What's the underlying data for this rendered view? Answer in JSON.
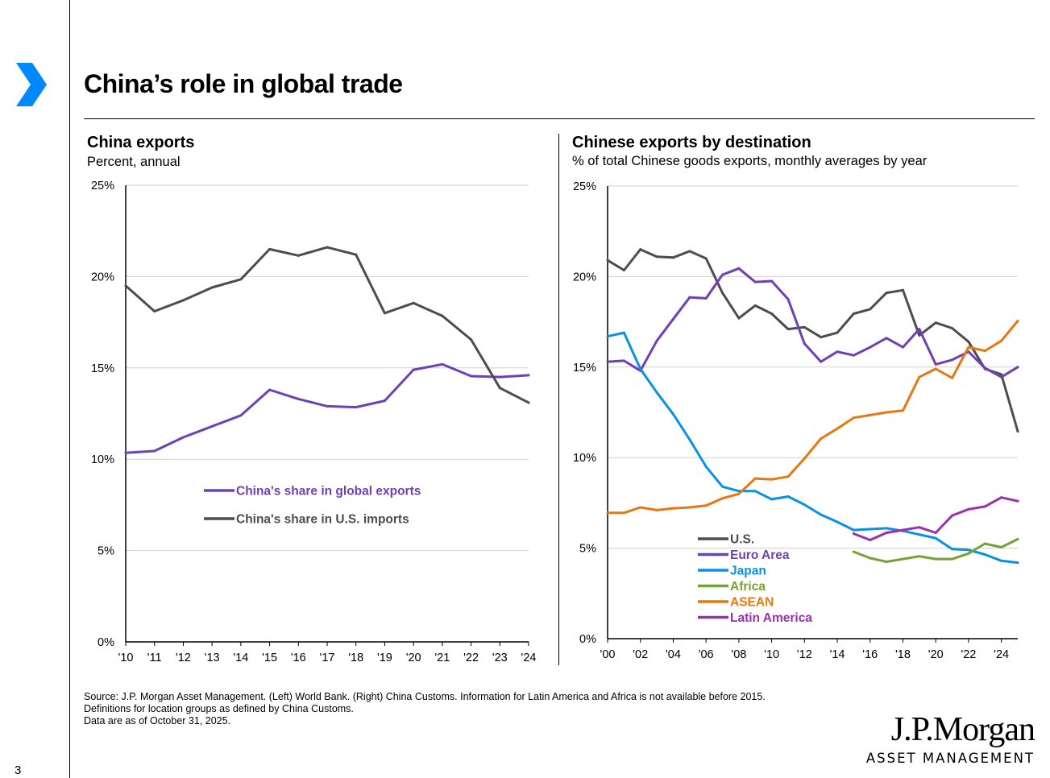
{
  "page": {
    "title": "China’s role in global trade",
    "page_number": "3",
    "source_lines": [
      "Source:  J.P. Morgan Asset Management. (Left) World Bank. (Right) China Customs. Information for Latin America and Africa is not available before 2015.",
      "Definitions for location groups as defined by China Customs.",
      "Data are as of October 31, 2025."
    ],
    "logo": {
      "main": "J.P.Morgan",
      "sub": "ASSET MANAGEMENT"
    },
    "colors": {
      "accent": "#0088ff",
      "grid": "#d0d0d0",
      "axis": "#000000"
    }
  },
  "chart_data": [
    {
      "type": "line",
      "title": "China exports",
      "subtitle": "Percent, annual",
      "xlabel": "",
      "ylabel": "",
      "categories": [
        "'10",
        "'11",
        "'12",
        "'13",
        "'14",
        "'15",
        "'16",
        "'17",
        "'18",
        "'19",
        "'20",
        "'21",
        "'22",
        "'23",
        "'24"
      ],
      "ylim": [
        0,
        25
      ],
      "yticks": [
        0,
        5,
        10,
        15,
        20,
        25
      ],
      "ytick_labels": [
        "0%",
        "5%",
        "10%",
        "15%",
        "20%",
        "25%"
      ],
      "grid": true,
      "legend_position": "center",
      "series": [
        {
          "name": "China's share in global exports",
          "color": "#6f3fb5",
          "values": [
            10.35,
            10.45,
            11.2,
            11.8,
            12.4,
            13.8,
            13.3,
            12.9,
            12.85,
            13.2,
            14.9,
            15.2,
            14.55,
            14.5,
            14.6
          ]
        },
        {
          "name": "China's share in U.S. imports",
          "color": "#4d4d4d",
          "values": [
            19.5,
            18.1,
            18.7,
            19.4,
            19.85,
            21.5,
            21.15,
            21.6,
            21.2,
            18.0,
            18.55,
            17.85,
            16.55,
            13.9,
            13.1
          ]
        }
      ]
    },
    {
      "type": "line",
      "title": "Chinese exports by destination",
      "subtitle": "% of total Chinese goods exports, monthly averages by year",
      "xlabel": "",
      "ylabel": "",
      "x": [
        2000,
        2001,
        2002,
        2003,
        2004,
        2005,
        2006,
        2007,
        2008,
        2009,
        2010,
        2011,
        2012,
        2013,
        2014,
        2015,
        2016,
        2017,
        2018,
        2019,
        2020,
        2021,
        2022,
        2023,
        2024,
        2025
      ],
      "xlim": [
        2000,
        2025
      ],
      "xticks": [
        2000,
        2002,
        2004,
        2006,
        2008,
        2010,
        2012,
        2014,
        2016,
        2018,
        2020,
        2022,
        2024
      ],
      "xtick_labels": [
        "'00",
        "'02",
        "'04",
        "'06",
        "'08",
        "'10",
        "'12",
        "'14",
        "'16",
        "'18",
        "'20",
        "'22",
        "'24"
      ],
      "ylim": [
        0,
        25
      ],
      "yticks": [
        0,
        5,
        10,
        15,
        20,
        25
      ],
      "ytick_labels": [
        "0%",
        "5%",
        "10%",
        "15%",
        "20%",
        "25%"
      ],
      "grid": true,
      "legend_position": "bottom-left",
      "series": [
        {
          "name": "U.S.",
          "color": "#4d4d4d",
          "values": [
            20.9,
            20.35,
            21.5,
            21.1,
            21.05,
            21.4,
            21.0,
            19.1,
            17.7,
            18.4,
            17.95,
            17.1,
            17.2,
            16.65,
            16.9,
            17.95,
            18.2,
            19.1,
            19.25,
            16.75,
            17.45,
            17.15,
            16.4,
            14.9,
            14.6,
            11.45
          ]
        },
        {
          "name": "Euro Area",
          "color": "#6f3fb5",
          "values": [
            15.3,
            15.35,
            14.8,
            16.45,
            17.65,
            18.85,
            18.8,
            20.1,
            20.45,
            19.7,
            19.75,
            18.75,
            16.3,
            15.3,
            15.85,
            15.65,
            16.1,
            16.6,
            16.1,
            17.1,
            15.15,
            15.4,
            15.85,
            14.95,
            14.45,
            15.0
          ]
        },
        {
          "name": "Japan",
          "color": "#0891e6",
          "values": [
            16.7,
            16.9,
            14.9,
            13.6,
            12.4,
            11.0,
            9.5,
            8.4,
            8.15,
            8.15,
            7.7,
            7.85,
            7.4,
            6.85,
            6.45,
            6.0,
            6.05,
            6.1,
            5.95,
            5.75,
            5.55,
            4.95,
            4.9,
            4.65,
            4.3,
            4.2
          ]
        },
        {
          "name": "Africa",
          "color": "#76a136",
          "values": [
            null,
            null,
            null,
            null,
            null,
            null,
            null,
            null,
            null,
            null,
            null,
            null,
            null,
            null,
            null,
            4.8,
            4.45,
            4.25,
            4.4,
            4.55,
            4.4,
            4.4,
            4.7,
            5.25,
            5.05,
            5.5
          ]
        },
        {
          "name": "ASEAN",
          "color": "#e9770f",
          "values": [
            6.95,
            6.95,
            7.25,
            7.1,
            7.2,
            7.25,
            7.35,
            7.75,
            8.0,
            8.85,
            8.8,
            8.95,
            9.95,
            11.05,
            11.6,
            12.2,
            12.35,
            12.5,
            12.6,
            14.45,
            14.9,
            14.4,
            16.1,
            15.9,
            16.45,
            17.55
          ]
        },
        {
          "name": "Latin America",
          "color": "#9b2fae",
          "values": [
            null,
            null,
            null,
            null,
            null,
            null,
            null,
            null,
            null,
            null,
            null,
            null,
            null,
            null,
            null,
            5.8,
            5.45,
            5.85,
            6.0,
            6.15,
            5.85,
            6.8,
            7.15,
            7.3,
            7.8,
            7.6
          ]
        }
      ]
    }
  ]
}
